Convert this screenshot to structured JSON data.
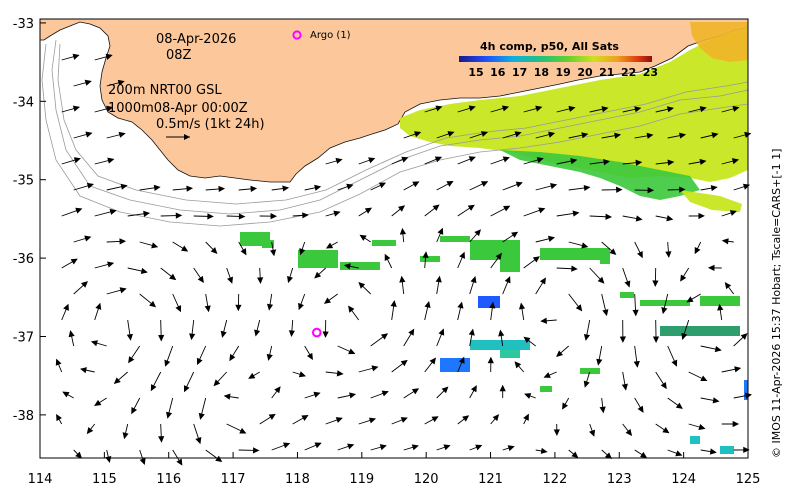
{
  "map": {
    "lon_ticks": [
      "114",
      "115",
      "116",
      "117",
      "118",
      "119",
      "120",
      "121",
      "122",
      "123",
      "124",
      "125"
    ],
    "lat_ticks": [
      "-33",
      "-34",
      "-35",
      "-36",
      "-37",
      "-38"
    ],
    "lon_range": [
      114,
      125
    ],
    "lat_range": [
      -38.55,
      -32.95
    ]
  },
  "annotations": {
    "date": "08-Apr-2026",
    "hour": "08Z",
    "depth_line1": "200m  NRT00 GSL",
    "depth_line2": "1000m08-Apr 00:00Z",
    "scale_text": "0.5m/s (1kt 24h)"
  },
  "argo": {
    "legend_label": "Argo (1)",
    "floats": [
      {
        "lon": 118.3,
        "lat": -36.95
      }
    ],
    "color": "#ff00ff"
  },
  "colorbar": {
    "title": "4h comp, p50, All Sats",
    "ticks": [
      "15",
      "16",
      "17",
      "18",
      "19",
      "20",
      "21",
      "22",
      "23"
    ]
  },
  "credit": "© IMOS 11-Apr-2026 15:37 Hobart; Tscale=CARS+[-1 1]",
  "colors": {
    "land": "#fcc89b",
    "sst_cool": "#1e78ff",
    "sst_mid": "#3cc83c",
    "sst_warm": "#c8e61e"
  }
}
